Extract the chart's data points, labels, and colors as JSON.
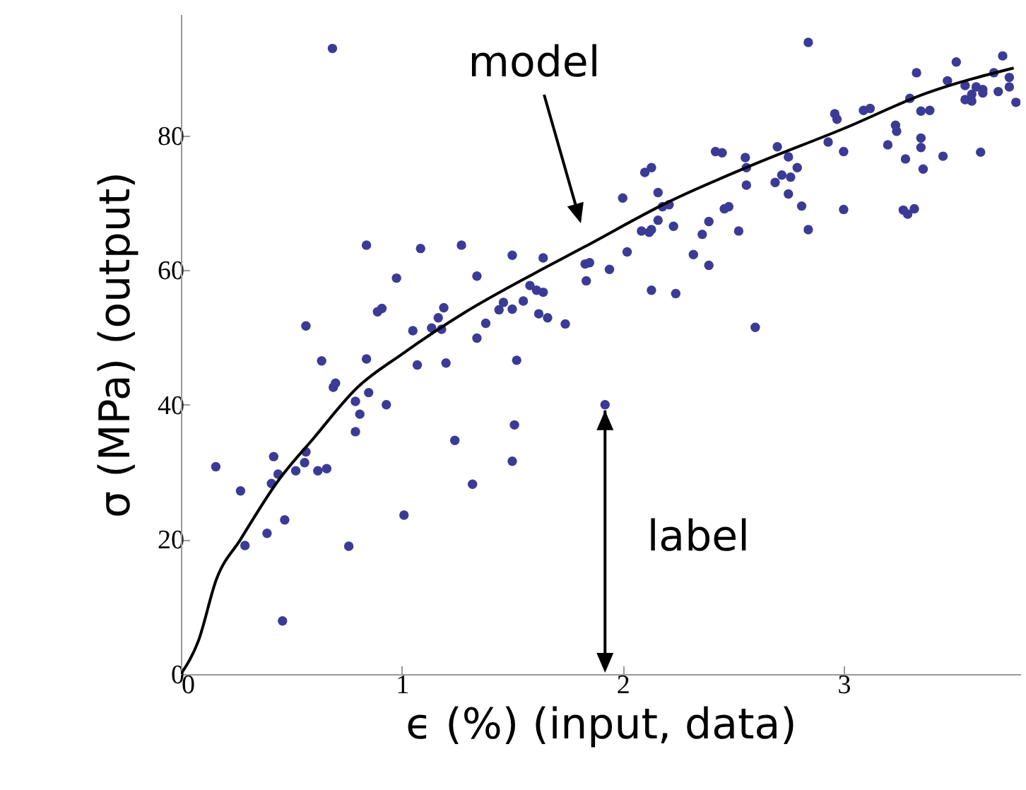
{
  "chart_data": {
    "type": "scatter",
    "xlabel": "ϵ (%) (input, data)",
    "ylabel": "σ (MPa)  (output)",
    "xlim": [
      0,
      3.8
    ],
    "ylim": [
      0,
      98
    ],
    "xticks": [
      0,
      1,
      2,
      3
    ],
    "yticks": [
      0,
      20,
      40,
      60,
      80
    ],
    "grid": false,
    "series": [
      {
        "marker": "circle",
        "color": "#3b3b96",
        "x": [
          0.686,
          0.84,
          1.085,
          1.27,
          0.976,
          0.89,
          0.91,
          1.19,
          1.165,
          1.135,
          1.18,
          1.05,
          0.566,
          0.637,
          0.84,
          1.07,
          1.2,
          0.69,
          0.7,
          0.79,
          0.85,
          0.81,
          0.93,
          0.79,
          1.24,
          0.158,
          0.42,
          0.44,
          0.41,
          0.566,
          0.56,
          0.52,
          0.62,
          0.66,
          0.27,
          0.29,
          0.39,
          0.47,
          0.76,
          1.01,
          0.46,
          1.32,
          1.5,
          1.64,
          1.34,
          1.83,
          1.85,
          1.835,
          1.94,
          2.0,
          2.1,
          2.13,
          2.16,
          2.18,
          2.21,
          2.16,
          2.085,
          2.12,
          2.13,
          2.23,
          2.02,
          2.13,
          2.24,
          2.32,
          2.36,
          2.39,
          2.39,
          2.42,
          2.45,
          2.46,
          2.48,
          2.525,
          2.555,
          2.56,
          2.56,
          1.46,
          1.44,
          1.5,
          1.55,
          1.58,
          1.61,
          1.64,
          1.62,
          1.66,
          1.74,
          1.38,
          1.34,
          1.52,
          1.51,
          1.5,
          1.92,
          2.84,
          2.7,
          2.75,
          2.79,
          2.69,
          2.72,
          2.76,
          2.75,
          2.81,
          2.84,
          2.96,
          2.97,
          2.93,
          3.0,
          3.0,
          3.09,
          3.12,
          3.235,
          3.24,
          3.2,
          3.28,
          3.27,
          3.29,
          3.32,
          3.3,
          3.33,
          3.35,
          3.39,
          3.35,
          3.35,
          3.36,
          3.45,
          3.47,
          3.51,
          3.55,
          3.55,
          3.58,
          3.6,
          3.58,
          3.63,
          3.63,
          3.62,
          3.68,
          3.72,
          3.7,
          3.75,
          3.75,
          3.78,
          2.6
        ],
        "values": [
          92.9,
          63.7,
          63.2,
          63.7,
          58.8,
          53.8,
          54.3,
          54.4,
          52.9,
          51.4,
          51.2,
          51.0,
          51.7,
          46.5,
          46.8,
          45.9,
          46.2,
          42.6,
          43.2,
          40.5,
          41.8,
          38.6,
          40.0,
          36.0,
          34.7,
          30.8,
          32.3,
          29.7,
          28.3,
          33.0,
          31.4,
          30.2,
          30.2,
          30.5,
          27.2,
          19.1,
          20.9,
          22.9,
          19.0,
          23.6,
          7.9,
          28.2,
          62.2,
          61.8,
          59.1,
          60.9,
          61.1,
          58.4,
          60.1,
          70.7,
          74.5,
          75.2,
          71.5,
          69.4,
          69.7,
          67.4,
          65.8,
          65.6,
          66.0,
          66.5,
          62.7,
          57.0,
          56.5,
          62.3,
          65.3,
          67.2,
          60.7,
          77.6,
          77.4,
          69.1,
          69.4,
          65.8,
          76.7,
          75.2,
          72.6,
          55.2,
          54.1,
          54.2,
          55.4,
          57.7,
          57.0,
          56.7,
          53.5,
          52.9,
          52.0,
          52.1,
          49.9,
          46.6,
          37.0,
          31.6,
          40.0,
          93.8,
          78.3,
          76.8,
          75.2,
          73.0,
          74.1,
          73.8,
          71.3,
          69.5,
          66.0,
          83.2,
          82.4,
          79.0,
          77.6,
          69.0,
          83.7,
          84.0,
          81.5,
          80.6,
          78.6,
          76.5,
          68.9,
          68.3,
          69.1,
          85.5,
          89.3,
          83.6,
          83.7,
          79.6,
          78.2,
          75.0,
          76.9,
          88.1,
          90.9,
          87.4,
          85.3,
          85.1,
          87.2,
          86.1,
          86.8,
          86.3,
          77.5,
          89.3,
          91.8,
          86.5,
          88.6,
          87.2,
          84.9,
          51.5
        ]
      },
      {
        "type": "line",
        "color": "#000000",
        "x": [
          0,
          0.08,
          0.16,
          0.27,
          0.44,
          0.6,
          0.8,
          1.0,
          1.29,
          1.6,
          1.83,
          2.2,
          2.58,
          3.0,
          3.37,
          3.77
        ],
        "values": [
          0,
          5,
          14,
          20,
          28.7,
          35,
          42.6,
          47.5,
          53.8,
          59.5,
          63.5,
          70,
          75.5,
          81,
          86.2,
          90
        ]
      }
    ],
    "annotations": [
      "model",
      {
        "text": "label",
        "x": 1.92,
        "y": 40
      }
    ]
  }
}
